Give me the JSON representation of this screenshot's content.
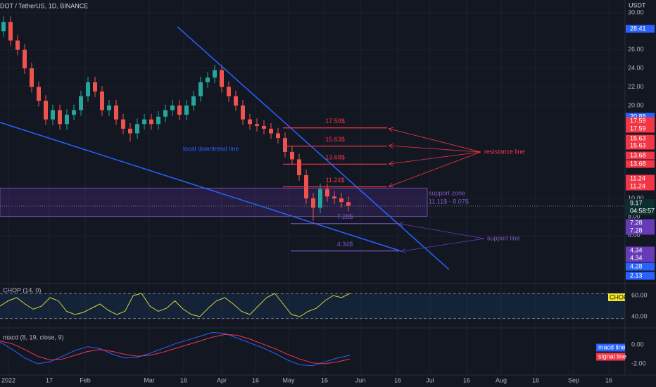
{
  "header": {
    "symbol": "DOT / TetherUS, 1D, BINANCE",
    "currency": "USDT"
  },
  "x_axis": {
    "labels": [
      "2022",
      "17",
      "Feb",
      "Mar",
      "16",
      "Apr",
      "16",
      "May",
      "16",
      "Jun",
      "16",
      "Jul",
      "16",
      "Aug",
      "16",
      "Sep",
      "16"
    ]
  },
  "price": {
    "ylim": [
      0.9,
      31.36
    ],
    "yticks": [
      {
        "value": 30,
        "label": "30.00"
      },
      {
        "value": 26,
        "label": "26.00"
      },
      {
        "value": 24,
        "label": "24.00"
      },
      {
        "value": 22,
        "label": "22.00"
      },
      {
        "value": 20,
        "label": "20.00"
      },
      {
        "value": 10,
        "label": "10.00"
      },
      {
        "value": 8,
        "label": "8.00"
      },
      {
        "value": 6,
        "label": "6.00"
      }
    ],
    "candles": [
      [
        28,
        29.6,
        27.4,
        29
      ],
      [
        29,
        29.6,
        26.4,
        27
      ],
      [
        27,
        27.6,
        25.4,
        26
      ],
      [
        26,
        26.6,
        23.4,
        24
      ],
      [
        24,
        24.6,
        21.4,
        22
      ],
      [
        22,
        22.6,
        19.9,
        20.5
      ],
      [
        20.5,
        21.1,
        17.9,
        18.5
      ],
      [
        18.5,
        20.1,
        17.9,
        19.5
      ],
      [
        19.5,
        20.1,
        17.4,
        18
      ],
      [
        18,
        19.6,
        17.4,
        19
      ],
      [
        19,
        20.1,
        18.4,
        19.5
      ],
      [
        19.5,
        21.6,
        18.9,
        21
      ],
      [
        21,
        23.1,
        20.4,
        22.5
      ],
      [
        22.5,
        23.1,
        20.9,
        21.5
      ],
      [
        21.5,
        22.1,
        18.9,
        19.5
      ],
      [
        19.5,
        20.6,
        18.9,
        20
      ],
      [
        20,
        20.6,
        17.9,
        18.5
      ],
      [
        18.5,
        19.1,
        16.9,
        17.5
      ],
      [
        17.5,
        18.1,
        16.1,
        17
      ],
      [
        17,
        18.6,
        16.4,
        18
      ],
      [
        18,
        19.1,
        17.4,
        18.5
      ],
      [
        18.5,
        19.1,
        17.4,
        18
      ],
      [
        18,
        19.4,
        17.4,
        18.8
      ],
      [
        18.8,
        20.1,
        18.2,
        19.5
      ],
      [
        19.5,
        20.6,
        18.9,
        20
      ],
      [
        20,
        20.6,
        18.4,
        19
      ],
      [
        19,
        20.6,
        18.4,
        20
      ],
      [
        20,
        21.6,
        19.4,
        21
      ],
      [
        21,
        23.1,
        20.4,
        22.5
      ],
      [
        22.5,
        23.6,
        21.9,
        23
      ],
      [
        23,
        24.4,
        22.4,
        23.8
      ],
      [
        23.8,
        24.4,
        21.4,
        22
      ],
      [
        22,
        22.6,
        20.4,
        21
      ],
      [
        21,
        21.6,
        19.4,
        20
      ],
      [
        20,
        20.6,
        17.9,
        18.5
      ],
      [
        18.5,
        19.1,
        17.4,
        18
      ],
      [
        18,
        18.6,
        17.2,
        17.8
      ],
      [
        17.8,
        18.4,
        16.9,
        17.5
      ],
      [
        17.5,
        18.1,
        16.4,
        17
      ],
      [
        17,
        17.6,
        15.9,
        16.5
      ],
      [
        16.5,
        17.1,
        14.4,
        15
      ],
      [
        15,
        15.6,
        13.6,
        14.2
      ],
      [
        14.2,
        14.8,
        11.9,
        12.5
      ],
      [
        12.5,
        13.1,
        9.4,
        10
      ],
      [
        10,
        10.6,
        7.6,
        9
      ],
      [
        9,
        11.6,
        8.4,
        11
      ],
      [
        11,
        11.6,
        9.6,
        10.2
      ],
      [
        10.2,
        10.8,
        9.4,
        10
      ],
      [
        10,
        10.6,
        9,
        9.6
      ],
      [
        9.6,
        10.2,
        8.6,
        9.2
      ]
    ],
    "current": 9.17,
    "countdown": "04:58:57",
    "badges": [
      {
        "value": 28.41,
        "color": "#2962ff"
      },
      {
        "value": 20.88,
        "color": "#2962ff"
      },
      {
        "value": 17.59,
        "color": "#f23645"
      },
      {
        "value": 17.59,
        "color": "#f23645"
      },
      {
        "value": 15.63,
        "color": "#f23645"
      },
      {
        "value": 15.63,
        "color": "#f23645"
      },
      {
        "value": 13.68,
        "color": "#f23645"
      },
      {
        "value": 13.68,
        "color": "#f23645"
      },
      {
        "value": 11.24,
        "color": "#f23645"
      },
      {
        "value": 11.24,
        "color": "#f23645"
      },
      {
        "value": 7.28,
        "color": "#673ab7"
      },
      {
        "value": 7.28,
        "color": "#673ab7"
      },
      {
        "value": 4.34,
        "color": "#673ab7"
      },
      {
        "value": 4.34,
        "color": "#673ab7"
      },
      {
        "value": 4.28,
        "color": "#2962ff"
      },
      {
        "value": 2.13,
        "color": "#2962ff"
      }
    ],
    "resistance": [
      {
        "value": 17.59,
        "label": "17.59$"
      },
      {
        "value": 15.63,
        "label": "15.63$"
      },
      {
        "value": 13.68,
        "label": "13.68$"
      },
      {
        "value": 11.24,
        "label": "11.24$"
      }
    ],
    "support": [
      {
        "value": 7.28,
        "label": "7.28$"
      },
      {
        "value": 4.34,
        "label": "4.34$"
      }
    ],
    "zone": {
      "label": "support zone",
      "range": "11.11$ - 8.07$",
      "top": 11.11,
      "bottom": 8.07
    },
    "annotations": {
      "resistance": "resistance line",
      "support": "support line",
      "trend": "local downtrend line"
    }
  },
  "chop": {
    "label": "CHOP (14, 0)",
    "badge": "CHOP",
    "ylim": [
      29.3,
      70.7
    ],
    "yticks": [
      {
        "value": 60,
        "label": "60.00"
      },
      {
        "value": 40,
        "label": "40.00"
      }
    ],
    "bands": [
      38.2,
      61.8
    ],
    "values": [
      50,
      55,
      58,
      52,
      47,
      50,
      58,
      55,
      45,
      42,
      44,
      48,
      52,
      46,
      42,
      45,
      60,
      62,
      50,
      45,
      48,
      55,
      47,
      42,
      40,
      48,
      55,
      58,
      52,
      45,
      42,
      50,
      58,
      62,
      52,
      42,
      40,
      45,
      48,
      55,
      60,
      58,
      62
    ]
  },
  "macd": {
    "label": "macd (8, 19, close, 9)",
    "ylim": [
      -3.11,
      1.63
    ],
    "yticks": [
      {
        "value": 0,
        "label": "0.00"
      },
      {
        "value": -2,
        "label": "-2.00"
      }
    ],
    "series": [
      {
        "name": "macd line",
        "color": "#2962ff",
        "values": [
          0.3,
          -0.5,
          -1.4,
          -2.0,
          -1.8,
          -1.2,
          -0.6,
          -0.2,
          -0.4,
          -1.0,
          -1.4,
          -1.3,
          -0.9,
          -0.4,
          0.1,
          0.5,
          0.9,
          1.3,
          1.2,
          0.7,
          0.2,
          -0.3,
          -0.9,
          -1.6,
          -2.1,
          -2.2,
          -1.8,
          -1.4,
          -1.1
        ]
      },
      {
        "name": "signal line",
        "color": "#f23645",
        "values": [
          0.4,
          0.1,
          -0.5,
          -1.2,
          -1.6,
          -1.5,
          -1.1,
          -0.7,
          -0.5,
          -0.7,
          -1.0,
          -1.2,
          -1.1,
          -0.8,
          -0.4,
          0.0,
          0.4,
          0.8,
          1.1,
          1.0,
          0.6,
          0.1,
          -0.4,
          -1.0,
          -1.5,
          -1.9,
          -2.0,
          -1.8,
          -1.5
        ]
      }
    ]
  }
}
